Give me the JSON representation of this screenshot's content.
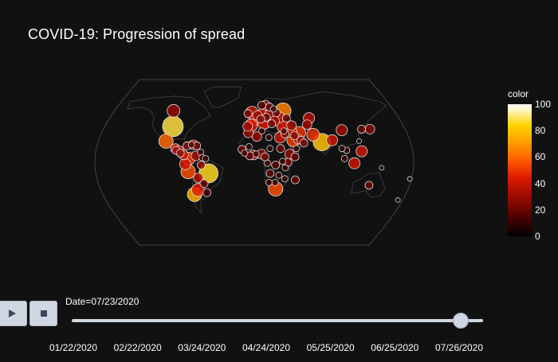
{
  "title": "COVID-19: Progression of spread",
  "colorbar": {
    "title": "color",
    "ticks": [
      "100",
      "80",
      "60",
      "40",
      "20",
      "0"
    ]
  },
  "controls": {
    "play_icon": "play-icon",
    "stop_icon": "stop-icon"
  },
  "slider": {
    "current_label": "Date=07/23/2020",
    "current_position": 0.945,
    "ticks": [
      "01/22/2020",
      "02/22/2020",
      "03/24/2020",
      "04/24/2020",
      "05/25/2020",
      "06/25/2020",
      "07/26/2020"
    ]
  },
  "map": {
    "projection": "robinson",
    "background": "#111111",
    "outline_color": "#444444",
    "bubble_stroke": "#dddddd"
  },
  "chart_data": {
    "type": "scatter",
    "title": "COVID-19: Progression of spread",
    "color_scale": "hot",
    "color_range": [
      0,
      100
    ],
    "points": [
      {
        "lon": -98,
        "lat": 39,
        "size": 13,
        "value": 88
      },
      {
        "lon": -104,
        "lat": 56,
        "size": 8,
        "value": 28
      },
      {
        "lon": -102,
        "lat": 23,
        "size": 9,
        "value": 60
      },
      {
        "lon": -52,
        "lat": -12,
        "size": 12,
        "value": 86
      },
      {
        "lon": -75,
        "lat": -10,
        "size": 9,
        "value": 55
      },
      {
        "lon": -71,
        "lat": -35,
        "size": 9,
        "value": 76
      },
      {
        "lon": -74,
        "lat": 4,
        "size": 8,
        "value": 50
      },
      {
        "lon": -66,
        "lat": -30,
        "size": 8,
        "value": 45
      },
      {
        "lon": -78,
        "lat": -2,
        "size": 7,
        "value": 40
      },
      {
        "lon": -90,
        "lat": 15,
        "size": 6,
        "value": 42
      },
      {
        "lon": -86,
        "lat": 13,
        "size": 6,
        "value": 38
      },
      {
        "lon": -80,
        "lat": 8,
        "size": 6,
        "value": 40
      },
      {
        "lon": -66,
        "lat": 7,
        "size": 6,
        "value": 30
      },
      {
        "lon": -64,
        "lat": -17,
        "size": 6,
        "value": 35
      },
      {
        "lon": -58,
        "lat": -23,
        "size": 5,
        "value": 20
      },
      {
        "lon": -56,
        "lat": -33,
        "size": 5,
        "value": 15
      },
      {
        "lon": -77,
        "lat": 18,
        "size": 5,
        "value": 25
      },
      {
        "lon": -70,
        "lat": 19,
        "size": 6,
        "value": 35
      },
      {
        "lon": -89,
        "lat": 13,
        "size": 5,
        "value": 30
      },
      {
        "lon": -84,
        "lat": 10,
        "size": 5,
        "value": 28
      },
      {
        "lon": -72,
        "lat": 19,
        "size": 4,
        "value": 15
      },
      {
        "lon": -61,
        "lat": 11,
        "size": 4,
        "value": 12
      },
      {
        "lon": -59,
        "lat": 5,
        "size": 4,
        "value": 10
      },
      {
        "lon": -55,
        "lat": 4,
        "size": 4,
        "value": 10
      },
      {
        "lon": -66,
        "lat": 18,
        "size": 5,
        "value": 20
      },
      {
        "lon": -60,
        "lat": -3,
        "size": 5,
        "value": 30
      },
      {
        "lon": 37,
        "lat": 56,
        "size": 10,
        "value": 65
      },
      {
        "lon": -3,
        "lat": 54,
        "size": 8,
        "value": 40
      },
      {
        "lon": 2,
        "lat": 47,
        "size": 8,
        "value": 42
      },
      {
        "lon": -4,
        "lat": 40,
        "size": 8,
        "value": 45
      },
      {
        "lon": 12,
        "lat": 43,
        "size": 8,
        "value": 42
      },
      {
        "lon": 10,
        "lat": 51,
        "size": 8,
        "value": 38
      },
      {
        "lon": 35,
        "lat": 39,
        "size": 8,
        "value": 45
      },
      {
        "lon": 53,
        "lat": 32,
        "size": 8,
        "value": 50
      },
      {
        "lon": 45,
        "lat": 24,
        "size": 8,
        "value": 52
      },
      {
        "lon": 78,
        "lat": 22,
        "size": 11,
        "value": 80
      },
      {
        "lon": 69,
        "lat": 30,
        "size": 8,
        "value": 50
      },
      {
        "lon": 90,
        "lat": 24,
        "size": 7,
        "value": 40
      },
      {
        "lon": 104,
        "lat": 35,
        "size": 7,
        "value": 30
      },
      {
        "lon": 105,
        "lat": 13,
        "size": 4,
        "value": 10
      },
      {
        "lon": 113,
        "lat": -1,
        "size": 7,
        "value": 40
      },
      {
        "lon": 122,
        "lat": 12,
        "size": 7,
        "value": 40
      },
      {
        "lon": 138,
        "lat": 36,
        "size": 6,
        "value": 25
      },
      {
        "lon": 128,
        "lat": 36,
        "size": 5,
        "value": 20
      },
      {
        "lon": 68,
        "lat": 48,
        "size": 7,
        "value": 35
      },
      {
        "lon": 64,
        "lat": 41,
        "size": 6,
        "value": 30
      },
      {
        "lon": 45,
        "lat": 40,
        "size": 6,
        "value": 30
      },
      {
        "lon": 44,
        "lat": 33,
        "size": 7,
        "value": 42
      },
      {
        "lon": 51,
        "lat": 25,
        "size": 6,
        "value": 35
      },
      {
        "lon": 54,
        "lat": 24,
        "size": 5,
        "value": 28
      },
      {
        "lon": 47,
        "lat": 29,
        "size": 5,
        "value": 25
      },
      {
        "lon": 57,
        "lat": 21,
        "size": 5,
        "value": 22
      },
      {
        "lon": 48,
        "lat": 15,
        "size": 4,
        "value": 12
      },
      {
        "lon": 36,
        "lat": 31,
        "size": 5,
        "value": 22
      },
      {
        "lon": 35,
        "lat": 34,
        "size": 4,
        "value": 15
      },
      {
        "lon": 30,
        "lat": 27,
        "size": 7,
        "value": 40
      },
      {
        "lon": 3,
        "lat": 28,
        "size": 6,
        "value": 30
      },
      {
        "lon": -7,
        "lat": 32,
        "size": 6,
        "value": 28
      },
      {
        "lon": 9,
        "lat": 34,
        "size": 4,
        "value": 10
      },
      {
        "lon": 17,
        "lat": 27,
        "size": 4,
        "value": 10
      },
      {
        "lon": 8,
        "lat": 9,
        "size": 6,
        "value": 28
      },
      {
        "lon": -1,
        "lat": 8,
        "size": 6,
        "value": 30
      },
      {
        "lon": -14,
        "lat": 14,
        "size": 5,
        "value": 20
      },
      {
        "lon": -11,
        "lat": 10,
        "size": 4,
        "value": 14
      },
      {
        "lon": -6,
        "lat": 17,
        "size": 4,
        "value": 10
      },
      {
        "lon": -5,
        "lat": 7,
        "size": 5,
        "value": 18
      },
      {
        "lon": 2,
        "lat": 9,
        "size": 4,
        "value": 12
      },
      {
        "lon": 12,
        "lat": 6,
        "size": 5,
        "value": 22
      },
      {
        "lon": 18,
        "lat": 15,
        "size": 4,
        "value": 8
      },
      {
        "lon": 30,
        "lat": 15,
        "size": 5,
        "value": 20
      },
      {
        "lon": 40,
        "lat": 9,
        "size": 6,
        "value": 28
      },
      {
        "lon": 46,
        "lat": 6,
        "size": 5,
        "value": 18
      },
      {
        "lon": 38,
        "lat": 0,
        "size": 5,
        "value": 22
      },
      {
        "lon": 32,
        "lat": 1,
        "size": 4,
        "value": 12
      },
      {
        "lon": 35,
        "lat": -6,
        "size": 4,
        "value": 10
      },
      {
        "lon": 24,
        "lat": -3,
        "size": 5,
        "value": 15
      },
      {
        "lon": 15,
        "lat": -1,
        "size": 4,
        "value": 12
      },
      {
        "lon": 18,
        "lat": -12,
        "size": 5,
        "value": 18
      },
      {
        "lon": 28,
        "lat": -14,
        "size": 4,
        "value": 12
      },
      {
        "lon": 35,
        "lat": -18,
        "size": 4,
        "value": 10
      },
      {
        "lon": 17,
        "lat": -22,
        "size": 4,
        "value": 12
      },
      {
        "lon": 24,
        "lat": -22,
        "size": 4,
        "value": 10
      },
      {
        "lon": 25,
        "lat": -29,
        "size": 9,
        "value": 55
      },
      {
        "lon": 47,
        "lat": -19,
        "size": 5,
        "value": 20
      },
      {
        "lon": 133,
        "lat": -25,
        "size": 5,
        "value": 22
      },
      {
        "lon": 174,
        "lat": -41,
        "size": 3,
        "value": 5
      },
      {
        "lon": 20,
        "lat": 60,
        "size": 5,
        "value": 18
      },
      {
        "lon": 10,
        "lat": 62,
        "size": 5,
        "value": 15
      },
      {
        "lon": 15,
        "lat": 62,
        "size": 6,
        "value": 28
      },
      {
        "lon": 25,
        "lat": 58,
        "size": 4,
        "value": 10
      },
      {
        "lon": 28,
        "lat": 54,
        "size": 5,
        "value": 20
      },
      {
        "lon": 31,
        "lat": 49,
        "size": 7,
        "value": 35
      },
      {
        "lon": 19,
        "lat": 52,
        "size": 6,
        "value": 30
      },
      {
        "lon": 15,
        "lat": 49,
        "size": 5,
        "value": 22
      },
      {
        "lon": 25,
        "lat": 45,
        "size": 6,
        "value": 30
      },
      {
        "lon": 21,
        "lat": 42,
        "size": 5,
        "value": 22
      },
      {
        "lon": 8,
        "lat": 47,
        "size": 5,
        "value": 25
      },
      {
        "lon": 4,
        "lat": 51,
        "size": 6,
        "value": 30
      },
      {
        "lon": -8,
        "lat": 39,
        "size": 6,
        "value": 30
      },
      {
        "lon": -8,
        "lat": 53,
        "size": 5,
        "value": 22
      },
      {
        "lon": 40,
        "lat": 48,
        "size": 5,
        "value": 20
      },
      {
        "lon": 100,
        "lat": 15,
        "size": 4,
        "value": 8
      },
      {
        "lon": 102,
        "lat": 4,
        "size": 4,
        "value": 12
      },
      {
        "lon": 121,
        "lat": 23,
        "size": 3,
        "value": 5
      },
      {
        "lon": 144,
        "lat": -6,
        "size": 3,
        "value": 4
      },
      {
        "lon": 178,
        "lat": -18,
        "size": 3,
        "value": 3
      }
    ]
  }
}
